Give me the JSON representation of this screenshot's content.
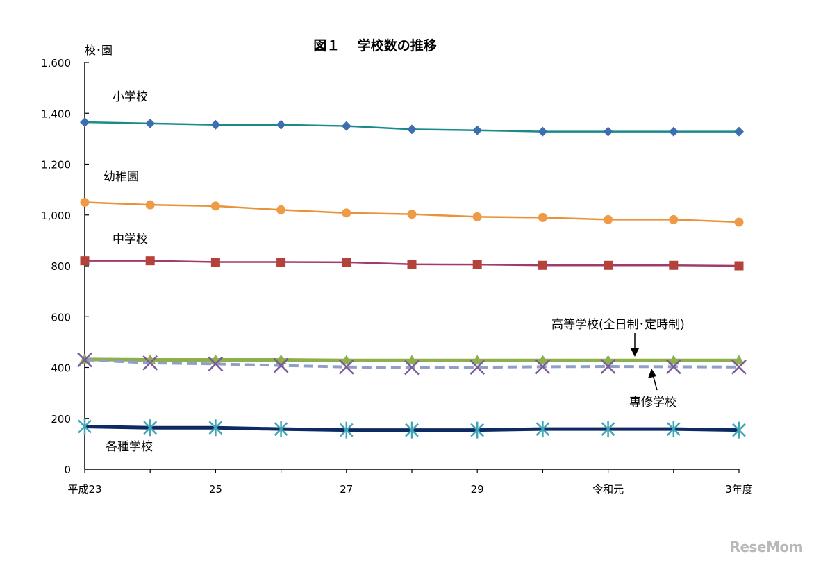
{
  "chart_data": {
    "type": "line",
    "title": "図１　 学校数の推移",
    "ylabel": "校･園",
    "ylim": [
      0,
      1600
    ],
    "yticks": [
      0,
      200,
      400,
      600,
      800,
      1000,
      1200,
      1400,
      1600
    ],
    "ytick_labels": [
      "0",
      "200",
      "400",
      "600",
      "800",
      "1,000",
      "1,200",
      "1,400",
      "1,600"
    ],
    "x_index": [
      0,
      1,
      2,
      3,
      4,
      5,
      6,
      7,
      8,
      9,
      10
    ],
    "x_tick_labels": [
      "平成23",
      "",
      "25",
      "",
      "27",
      "",
      "29",
      "",
      "令和元",
      "",
      "3年度"
    ],
    "grid": false,
    "series": [
      {
        "name": "小学校",
        "color": "#1a8a8a",
        "marker": "diamond",
        "marker_color": "#3d6fb0",
        "dash": false,
        "width": 2.5,
        "values": [
          1365,
          1360,
          1355,
          1355,
          1350,
          1337,
          1333,
          1328,
          1328,
          1328,
          1328
        ]
      },
      {
        "name": "幼稚園",
        "color": "#e8923b",
        "marker": "circle",
        "marker_color": "#ef9a45",
        "dash": false,
        "width": 2.5,
        "values": [
          1050,
          1040,
          1035,
          1020,
          1008,
          1003,
          993,
          990,
          982,
          982,
          972
        ]
      },
      {
        "name": "中学校",
        "color": "#a23b6c",
        "marker": "square",
        "marker_color": "#b4423b",
        "dash": false,
        "width": 2.5,
        "values": [
          820,
          820,
          815,
          815,
          814,
          806,
          805,
          802,
          802,
          802,
          800
        ]
      },
      {
        "name": "高等学校(全日制･定時制)",
        "color": "#8db04d",
        "marker": "triangle",
        "marker_color": "#8db04d",
        "dash": false,
        "width": 5,
        "values": [
          432,
          430,
          430,
          430,
          428,
          428,
          428,
          428,
          428,
          428,
          428
        ]
      },
      {
        "name": "専修学校",
        "color": "#8fa0c7",
        "marker": "x",
        "marker_color": "#7b5a9c",
        "dash": true,
        "width": 4,
        "values": [
          430,
          418,
          414,
          408,
          402,
          400,
          401,
          403,
          404,
          403,
          402
        ]
      },
      {
        "name": "各種学校",
        "color": "#0d2a63",
        "marker": "asterisk",
        "marker_color": "#3fa6b8",
        "dash": false,
        "width": 5,
        "values": [
          168,
          163,
          163,
          158,
          154,
          154,
          154,
          158,
          158,
          158,
          154
        ]
      }
    ],
    "annotation_arrows": [
      {
        "target": "高等学校(全日制･定時制)",
        "direction": "down"
      },
      {
        "target": "専修学校",
        "direction": "up"
      }
    ]
  },
  "watermark": "ReseMom"
}
